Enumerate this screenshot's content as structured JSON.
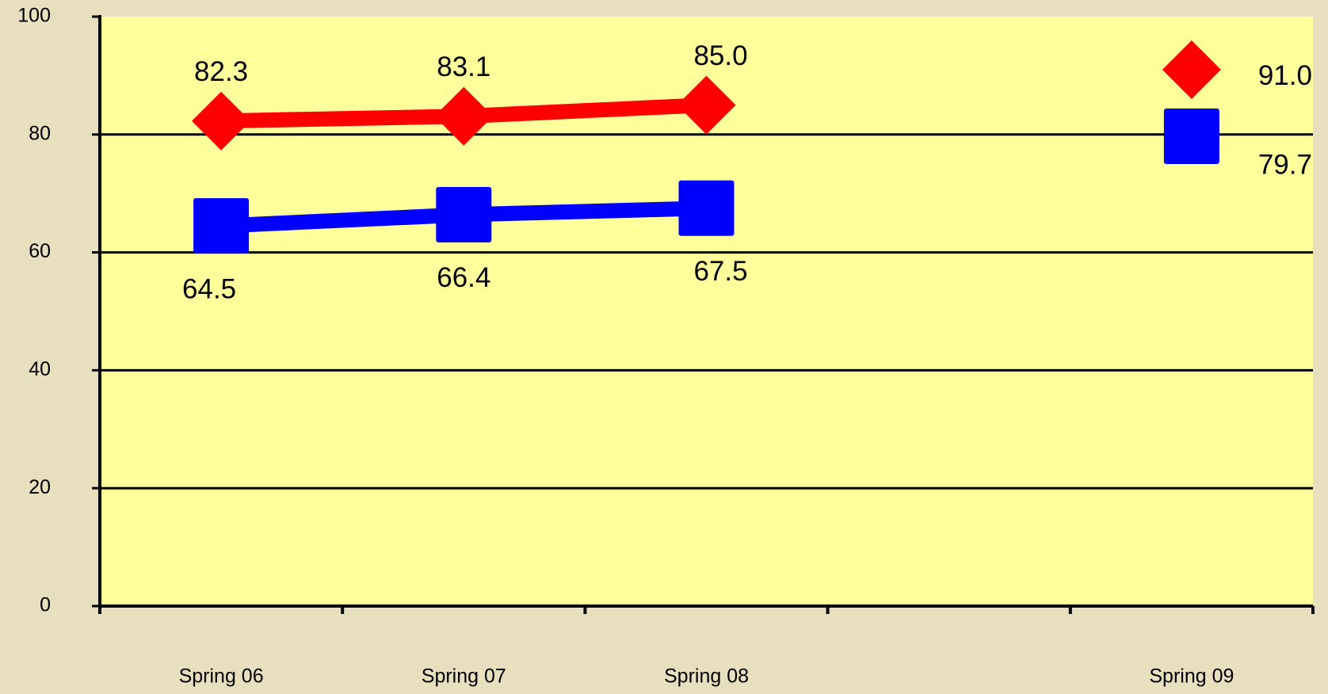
{
  "chart_data": {
    "type": "line",
    "categories": [
      "Spring 06",
      "Spring 07",
      "Spring 08",
      null,
      "Spring 09"
    ],
    "series": [
      {
        "color": "#ff0000",
        "marker": "diamond",
        "values": [
          82.3,
          83.1,
          85.0,
          null,
          91.0
        ],
        "value_labels": [
          "82.3",
          "83.1",
          "85.0",
          null,
          "91.0"
        ]
      },
      {
        "color": "#0000ff",
        "marker": "square",
        "values": [
          64.5,
          66.4,
          67.5,
          null,
          79.7
        ],
        "value_labels": [
          "64.5",
          "66.4",
          "67.5",
          null,
          "79.7"
        ]
      }
    ],
    "ylim": [
      0,
      100
    ],
    "yticks": [
      0,
      20,
      40,
      60,
      80,
      100
    ],
    "grid": true,
    "plot_color": "#ffff9c"
  }
}
